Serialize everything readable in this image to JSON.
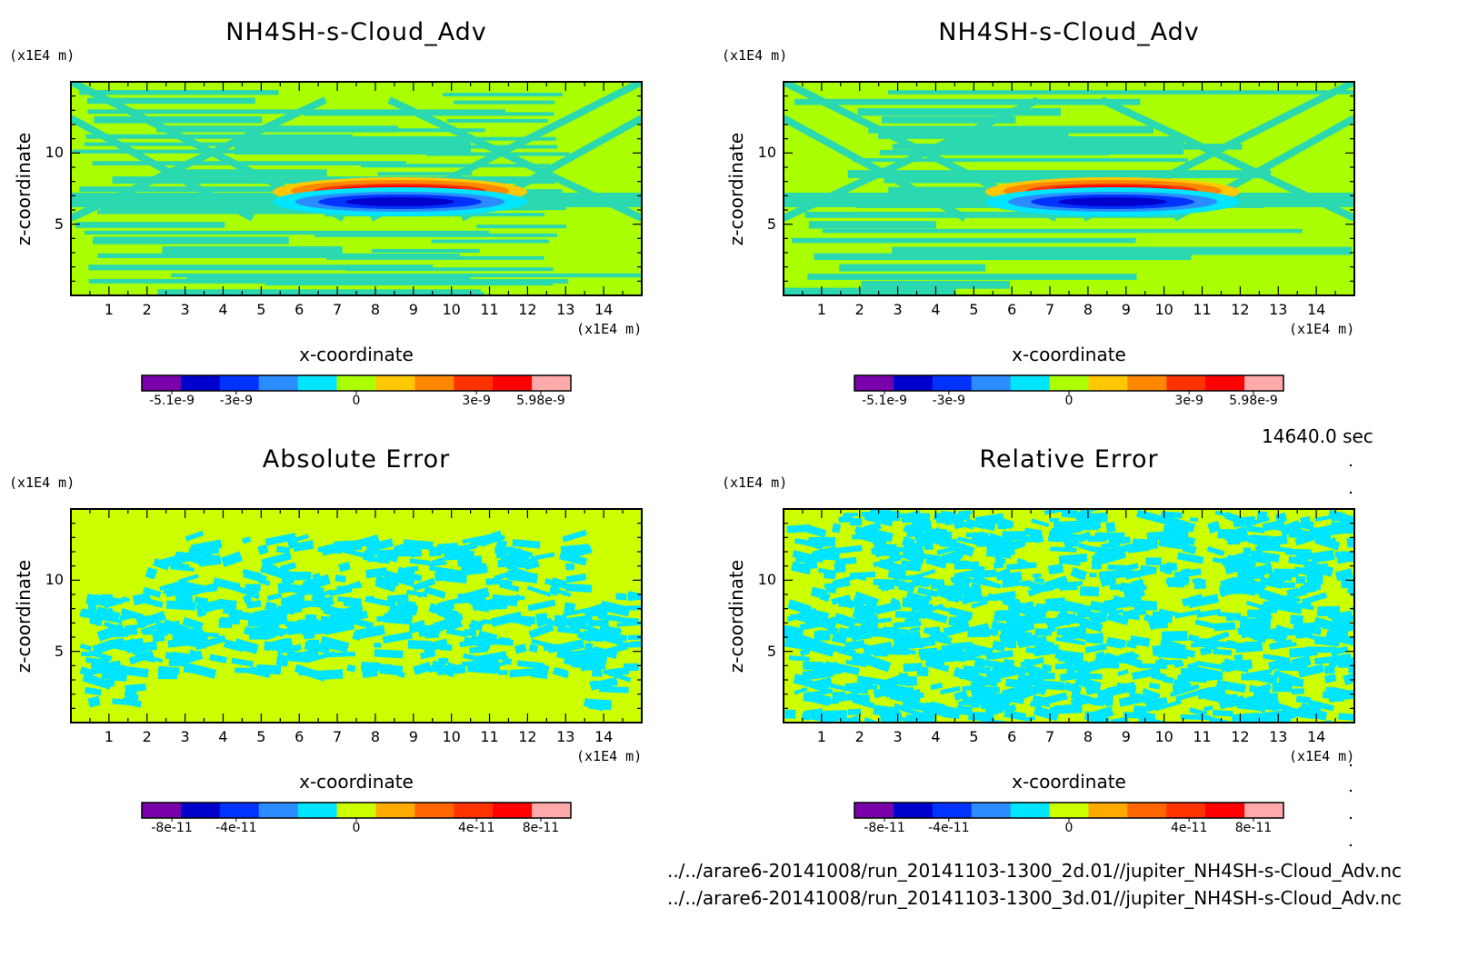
{
  "footer": {
    "time": "14640.0 sec",
    "files": [
      "../../arare6-20141008/run_20141103-1300_2d.01//jupiter_NH4SH-s-Cloud_Adv.nc",
      "../../arare6-20141008/run_20141103-1300_3d.01//jupiter_NH4SH-s-Cloud_Adv.nc"
    ]
  },
  "chart_data": [
    {
      "type": "heatmap",
      "title": "NH4SH-s-Cloud_Adv",
      "xlabel": "x-coordinate",
      "ylabel": "z-coordinate",
      "x_unit": "(x1E4 m)",
      "y_unit": "(x1E4 m)",
      "xlim": [
        0,
        15
      ],
      "ylim": [
        0,
        15
      ],
      "x_ticks": [
        1,
        2,
        3,
        4,
        5,
        6,
        7,
        8,
        9,
        10,
        11,
        12,
        13,
        14
      ],
      "y_ticks": [
        5,
        10
      ],
      "colorbar": {
        "colors": [
          "#7a00ac",
          "#0000cc",
          "#0033ff",
          "#2b8cff",
          "#00e5ff",
          "#aaff00",
          "#ffc800",
          "#ff8800",
          "#ff3300",
          "#ff0000",
          "#ffaaaa"
        ],
        "labels": [
          "-5.1e-9",
          "-3e-9",
          "0",
          "3e-9",
          "5.98e-9"
        ]
      },
      "background_color": "#aaff00",
      "pattern_color": "#2bd9b0"
    },
    {
      "type": "heatmap",
      "title": "NH4SH-s-Cloud_Adv",
      "xlabel": "x-coordinate",
      "ylabel": "z-coordinate",
      "x_unit": "(x1E4 m)",
      "y_unit": "(x1E4 m)",
      "xlim": [
        0,
        15
      ],
      "ylim": [
        0,
        15
      ],
      "x_ticks": [
        1,
        2,
        3,
        4,
        5,
        6,
        7,
        8,
        9,
        10,
        11,
        12,
        13,
        14
      ],
      "y_ticks": [
        5,
        10
      ],
      "colorbar": {
        "colors": [
          "#7a00ac",
          "#0000cc",
          "#0033ff",
          "#2b8cff",
          "#00e5ff",
          "#aaff00",
          "#ffc800",
          "#ff8800",
          "#ff3300",
          "#ff0000",
          "#ffaaaa"
        ],
        "labels": [
          "-5.1e-9",
          "-3e-9",
          "0",
          "3e-9",
          "5.98e-9"
        ]
      },
      "background_color": "#aaff00",
      "pattern_color": "#2bd9b0"
    },
    {
      "type": "heatmap",
      "title": "Absolute Error",
      "xlabel": "x-coordinate",
      "ylabel": "z-coordinate",
      "x_unit": "(x1E4 m)",
      "y_unit": "(x1E4 m)",
      "xlim": [
        0,
        15
      ],
      "ylim": [
        0,
        15
      ],
      "x_ticks": [
        1,
        2,
        3,
        4,
        5,
        6,
        7,
        8,
        9,
        10,
        11,
        12,
        13,
        14
      ],
      "y_ticks": [
        5,
        10
      ],
      "colorbar": {
        "colors": [
          "#7a00ac",
          "#0000cc",
          "#0033ff",
          "#2b8cff",
          "#00e5ff",
          "#ccff00",
          "#ffaa00",
          "#ff6600",
          "#ff3300",
          "#ff0000",
          "#ffaaaa"
        ],
        "labels": [
          "-8e-11",
          "-4e-11",
          "0",
          "4e-11",
          "8e-11"
        ]
      },
      "background_color": "#ccff00",
      "pattern_color": "#00e5ff"
    },
    {
      "type": "heatmap",
      "title": "Relative Error",
      "xlabel": "x-coordinate",
      "ylabel": "z-coordinate",
      "x_unit": "(x1E4 m)",
      "y_unit": "(x1E4 m)",
      "xlim": [
        0,
        15
      ],
      "ylim": [
        0,
        15
      ],
      "x_ticks": [
        1,
        2,
        3,
        4,
        5,
        6,
        7,
        8,
        9,
        10,
        11,
        12,
        13,
        14
      ],
      "y_ticks": [
        5,
        10
      ],
      "colorbar": {
        "colors": [
          "#7a00ac",
          "#0000cc",
          "#0033ff",
          "#2b8cff",
          "#00e5ff",
          "#ccff00",
          "#ffaa00",
          "#ff6600",
          "#ff3300",
          "#ff0000",
          "#ffaaaa"
        ],
        "labels": [
          "-8e-11",
          "-4e-11",
          "0",
          "4e-11",
          "8e-11"
        ]
      },
      "background_color": "#ccff00",
      "pattern_color": "#00e5ff"
    }
  ]
}
